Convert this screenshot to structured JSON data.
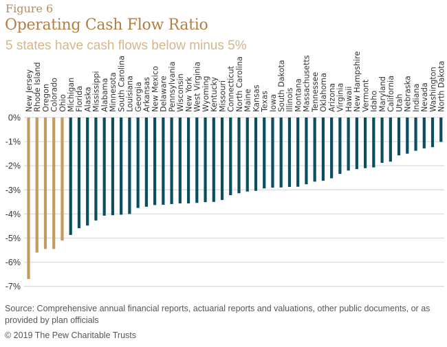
{
  "header": {
    "figure_label": "Figure 6",
    "title": "Operating Cash Flow Ratio",
    "subtitle": "5 states have cash flows below minus 5%"
  },
  "footer": {
    "source": "Source: Comprehensive annual financial reports, actuarial reports and valuations, other public documents, or as provided by plan officials",
    "copyright": "© 2019 The Pew Charitable Trusts"
  },
  "colors": {
    "highlight": "#c49a60",
    "default": "#0b4d61",
    "grid": "#dcdcdc",
    "label": "#333333"
  },
  "chart_data": {
    "type": "bar",
    "title": "Operating Cash Flow Ratio",
    "subtitle": "5 states have cash flows below minus 5%",
    "xlabel": "",
    "ylabel": "",
    "ylim": [
      -7,
      0
    ],
    "yticks": [
      0,
      -1,
      -2,
      -3,
      -4,
      -5,
      -6,
      -7
    ],
    "ytick_labels": [
      "0%",
      "-1%",
      "-2%",
      "-3%",
      "-4%",
      "-5%",
      "-6%",
      "-7%"
    ],
    "grid": true,
    "legend": "none",
    "categories": [
      "New Jersey",
      "Rhode Island",
      "Oregon",
      "Colorado",
      "Ohio",
      "Michigan",
      "Florida",
      "Alaska",
      "Mississippi",
      "Alabama",
      "Minnesota",
      "South Carolina",
      "Louisiana",
      "Georgia",
      "Arkansas",
      "New Mexico",
      "Delaware",
      "Pennsylvania",
      "Wisconsin",
      "New York",
      "West Virginia",
      "Wyoming",
      "Kentucky",
      "Missouri",
      "Connecticut",
      "North Carolina",
      "Maine",
      "Kansas",
      "Texas",
      "Iowa",
      "South Dakota",
      "Illinois",
      "Montana",
      "Massachusetts",
      "Tennessee",
      "Oklahoma",
      "Arizona",
      "Virginia",
      "Hawaii",
      "New Hampshire",
      "Vermont",
      "Idaho",
      "Maryland",
      "California",
      "Utah",
      "Nebraska",
      "Indiana",
      "Nevada",
      "Washington",
      "North Dakota"
    ],
    "values": [
      -6.7,
      -5.6,
      -5.45,
      -5.45,
      -5.1,
      -4.87,
      -4.59,
      -4.48,
      -4.27,
      -4.07,
      -4.05,
      -4.03,
      -4.0,
      -3.75,
      -3.7,
      -3.63,
      -3.62,
      -3.59,
      -3.56,
      -3.56,
      -3.54,
      -3.51,
      -3.5,
      -3.42,
      -3.22,
      -3.14,
      -3.07,
      -3.04,
      -2.94,
      -2.91,
      -2.9,
      -2.88,
      -2.87,
      -2.77,
      -2.66,
      -2.62,
      -2.52,
      -2.34,
      -2.2,
      -2.14,
      -2.1,
      -2.07,
      -1.88,
      -1.83,
      -1.57,
      -1.5,
      -1.38,
      -1.28,
      -1.23,
      -1.01
    ],
    "highlighted": [
      "New Jersey",
      "Rhode Island",
      "Oregon",
      "Colorado",
      "Ohio"
    ]
  }
}
